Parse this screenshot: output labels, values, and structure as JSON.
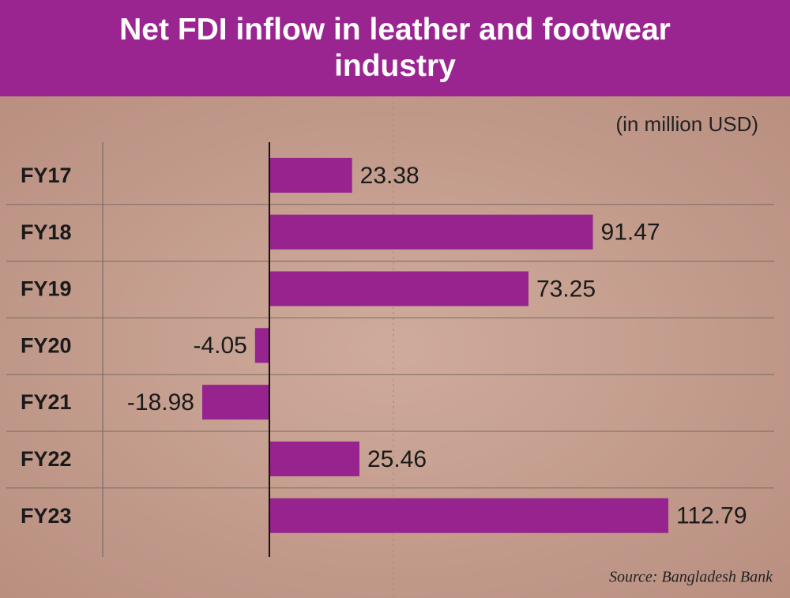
{
  "chart_data": {
    "type": "barh",
    "title": "Net FDI inflow in leather and footwear industry",
    "subtitle": "(in million USD)",
    "source": "Source: Bangladesh Bank",
    "categories": [
      "FY17",
      "FY18",
      "FY19",
      "FY20",
      "FY21",
      "FY22",
      "FY23"
    ],
    "values": [
      23.38,
      91.47,
      73.25,
      -4.05,
      -18.98,
      25.46,
      112.79
    ],
    "color": "#97238e",
    "xlim": [
      -45,
      140
    ]
  }
}
